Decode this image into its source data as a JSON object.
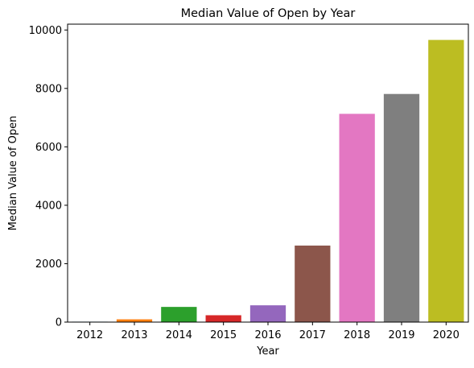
{
  "chart_data": {
    "type": "bar",
    "title": "Median Value of Open by Year",
    "xlabel": "Year",
    "ylabel": "Median Value of Open",
    "categories": [
      "2012",
      "2013",
      "2014",
      "2015",
      "2016",
      "2017",
      "2018",
      "2019",
      "2020"
    ],
    "values": [
      15,
      95,
      520,
      235,
      575,
      2620,
      7130,
      7810,
      9660
    ],
    "colors": [
      "#1f77b4",
      "#ff7f0e",
      "#2ca02c",
      "#d62728",
      "#9467bd",
      "#8c564b",
      "#e377c2",
      "#7f7f7f",
      "#bcbd22"
    ],
    "ylim": [
      0,
      10200
    ],
    "yticks": [
      0,
      2000,
      4000,
      6000,
      8000,
      10000
    ],
    "grid": false,
    "legend": "none"
  }
}
